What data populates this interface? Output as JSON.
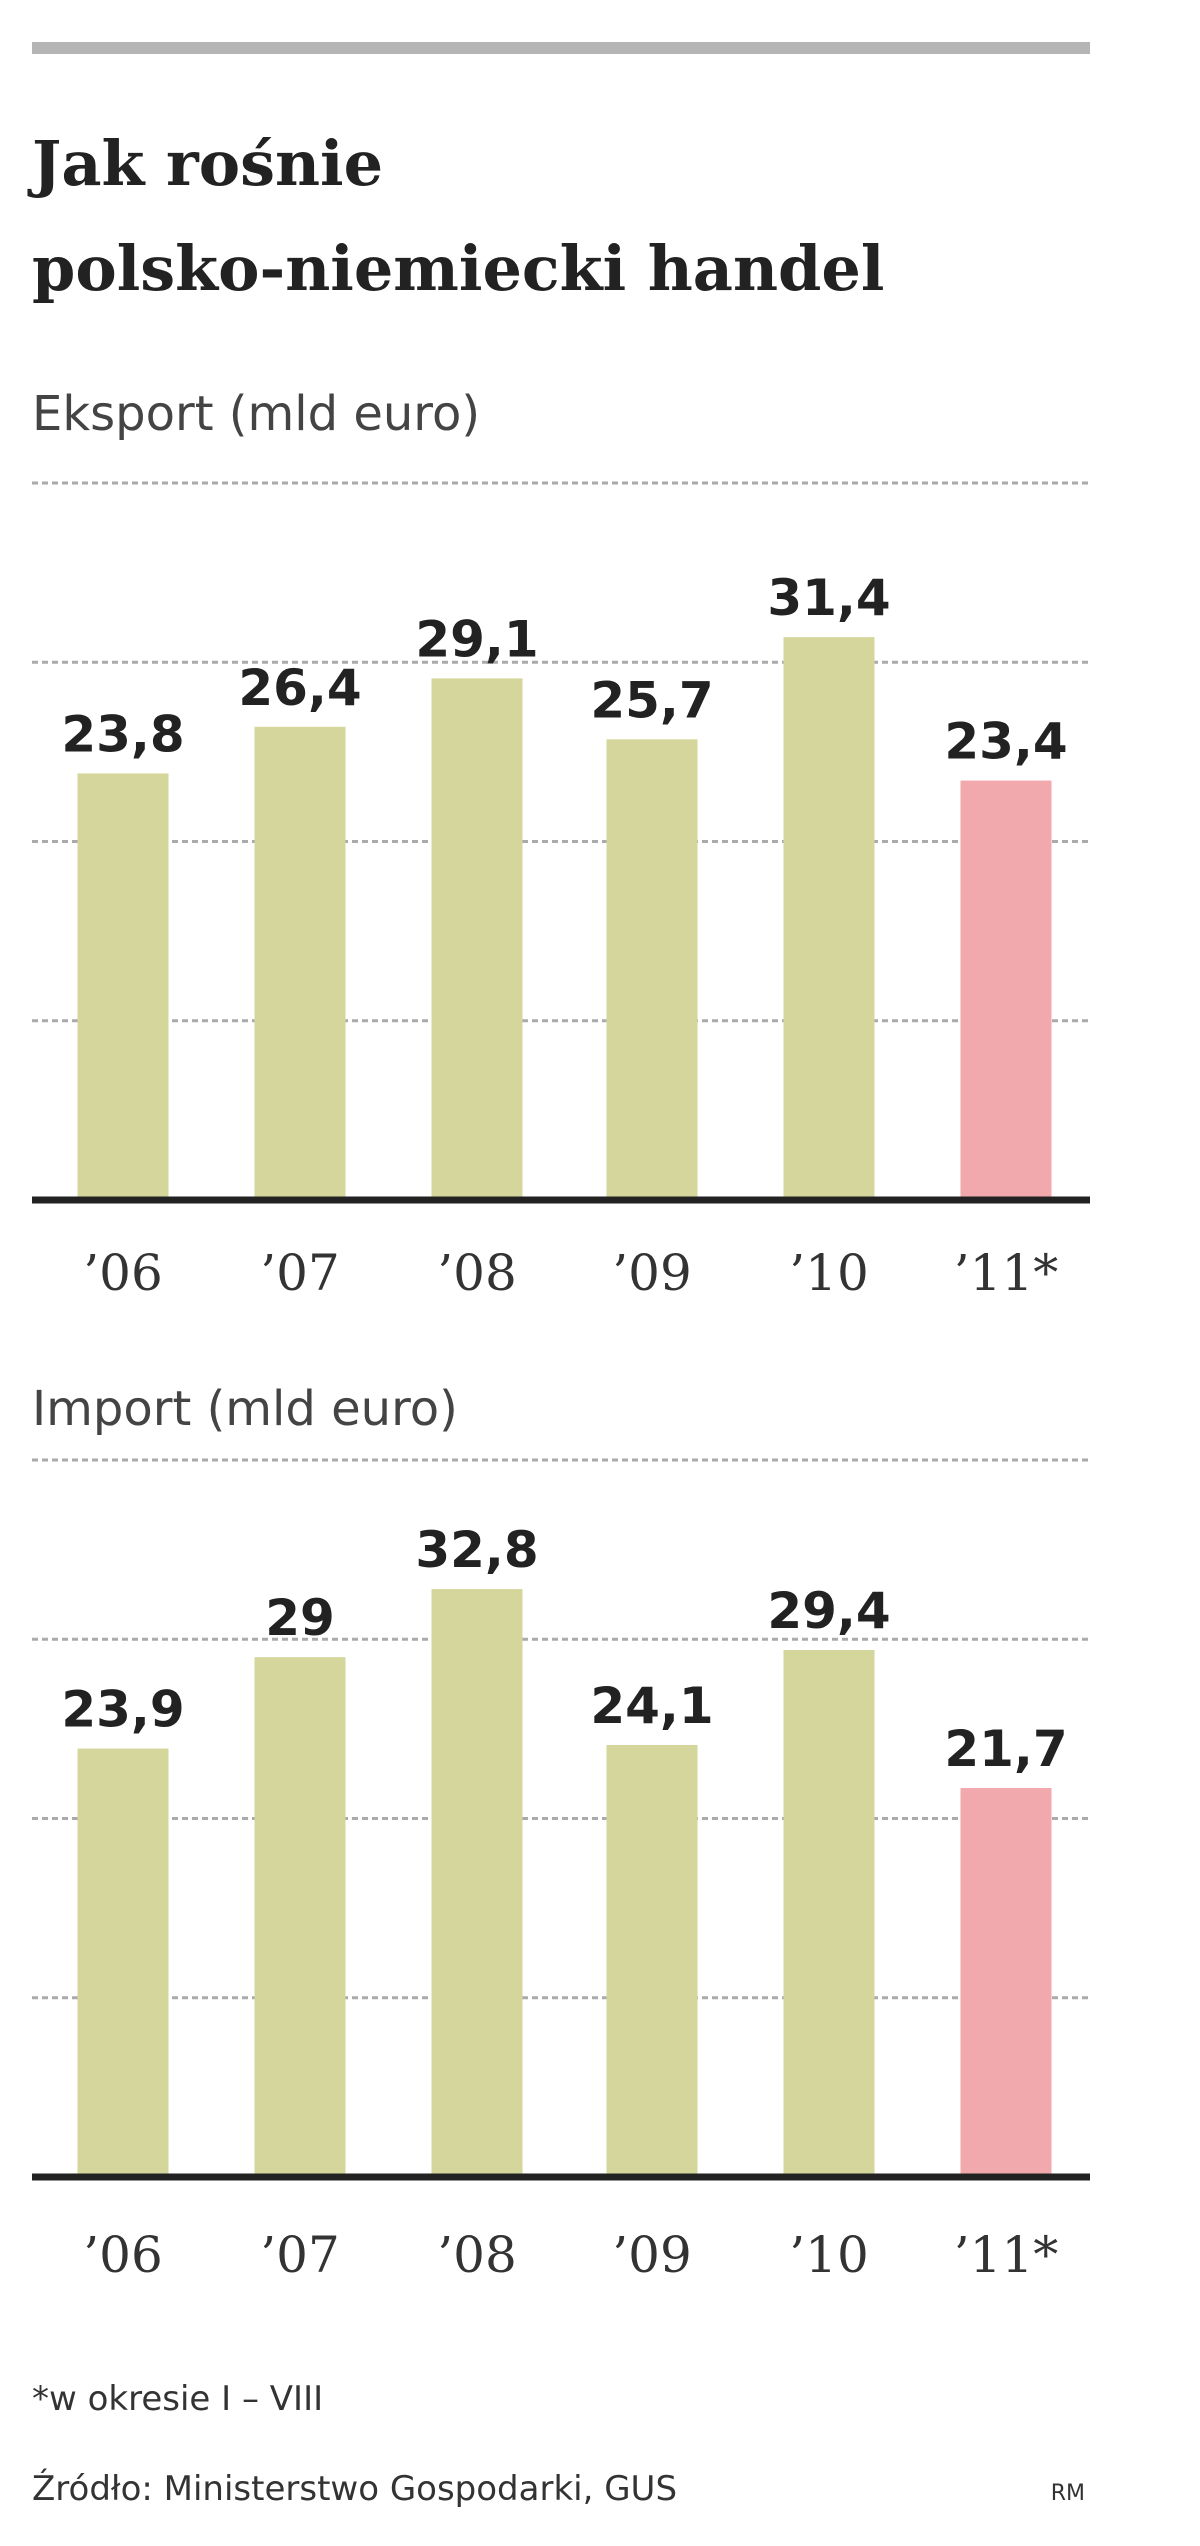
{
  "title": [
    "Jak rośnie",
    "polsko-niemiecki handel"
  ],
  "chart_data": [
    {
      "type": "bar",
      "title": "Eksport (mld euro)",
      "categories": [
        "’06",
        "’07",
        "’08",
        "’09",
        "’10",
        "’11*"
      ],
      "values": [
        23.8,
        26.4,
        29.1,
        25.7,
        31.4,
        23.4
      ],
      "value_labels": [
        "23,8",
        "26,4",
        "29,1",
        "25,7",
        "31,4",
        "23,4"
      ],
      "colors": [
        "#d5d69b",
        "#d5d69b",
        "#d5d69b",
        "#d5d69b",
        "#d5d69b",
        "#f1a9ae"
      ],
      "ylim": [
        0,
        40
      ],
      "yticks": [
        10,
        20,
        30,
        40
      ],
      "grid": true
    },
    {
      "type": "bar",
      "title": "Import (mld euro)",
      "categories": [
        "’06",
        "’07",
        "’08",
        "’09",
        "’10",
        "’11*"
      ],
      "values": [
        23.9,
        29,
        32.8,
        24.1,
        29.4,
        21.7
      ],
      "value_labels": [
        "23,9",
        "29",
        "32,8",
        "24,1",
        "29,4",
        "21,7"
      ],
      "colors": [
        "#d5d69b",
        "#d5d69b",
        "#d5d69b",
        "#d5d69b",
        "#d5d69b",
        "#f1a9ae"
      ],
      "ylim": [
        0,
        40
      ],
      "yticks": [
        10,
        20,
        30,
        40
      ],
      "grid": true
    }
  ],
  "footnote": "*w okresie I – VIII",
  "source": "Źródło: Ministerstwo Gospodarki, GUS",
  "credit": "RM"
}
